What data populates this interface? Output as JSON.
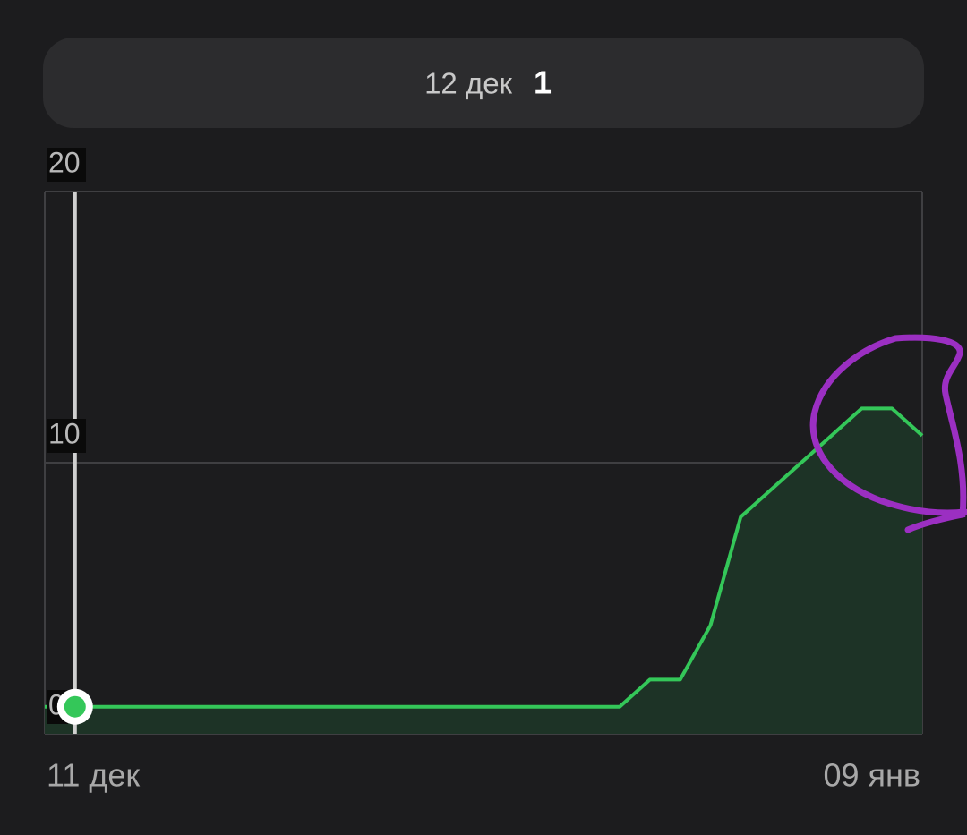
{
  "chart_data": {
    "type": "line",
    "selected": {
      "category": "12 дек",
      "value": 1
    },
    "categories": [
      "11 дек",
      null,
      null,
      null,
      null,
      null,
      null,
      null,
      null,
      null,
      null,
      null,
      null,
      null,
      null,
      null,
      null,
      null,
      null,
      null,
      null,
      null,
      null,
      null,
      null,
      null,
      null,
      null,
      null,
      "09 янв"
    ],
    "series": [
      {
        "color": "#34c759",
        "values": [
          1,
          1,
          1,
          1,
          1,
          1,
          1,
          1,
          1,
          1,
          1,
          1,
          1,
          1,
          1,
          1,
          1,
          1,
          1,
          1,
          2,
          2,
          4,
          8,
          9,
          10,
          11,
          12,
          12,
          11
        ]
      }
    ],
    "ylim": [
      0,
      20
    ],
    "yticks": [
      0,
      10,
      20
    ],
    "grid": true
  }
}
